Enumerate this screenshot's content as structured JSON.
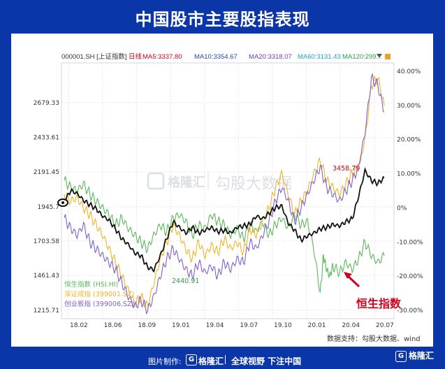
{
  "title": "中国股市主要股指表现",
  "watermark": {
    "brand": "格隆汇",
    "app": "勾股大数据"
  },
  "legend_header": {
    "symbol": "000001.SH [上证指数]",
    "period": "日线",
    "ma": [
      {
        "label": "MA5:3337.80",
        "color": "#d0021b"
      },
      {
        "label": "MA10:3354.67",
        "color": "#1f4ea8"
      },
      {
        "label": "MA20:3318.07",
        "color": "#6a3fb5"
      },
      {
        "label": "MA60:3131.43",
        "color": "#1aa3c8"
      },
      {
        "label": "MA120:299...",
        "color": "#2c9e3f"
      }
    ]
  },
  "footer": {
    "made_by": "图片制作:",
    "brand": "格隆汇",
    "slogan": "全球视野 下注中国"
  },
  "source_note": "数据支持：勾股大数据、wind",
  "annotation": {
    "text": "恒生指数",
    "color": "#d0021b"
  },
  "chart_data": {
    "type": "line",
    "x_ticks": [
      "18.02",
      "18.06",
      "18.09",
      "19.01",
      "19.04",
      "19.07",
      "19.10",
      "20.01",
      "20.04",
      "20.07"
    ],
    "y_left": {
      "ticks": [
        "2679.33",
        "2433.61",
        "2191.45",
        "1945.7",
        "1703.58",
        "1461.43",
        "1215.71"
      ],
      "range": [
        1215.71,
        2900
      ]
    },
    "y_right": {
      "ticks": [
        "40.00%",
        "30.00%",
        "20.00%",
        "10.00%",
        "0%",
        "-10.00%",
        "-20.00%",
        "-30.00%"
      ],
      "range": [
        -30,
        40
      ]
    },
    "point_labels": [
      {
        "text": "2440.91",
        "color": "#2c9e3f"
      },
      {
        "text": "3458.79",
        "color": "#d0021b"
      }
    ],
    "series": [
      {
        "name": "恒生指数 (HSI.HI)",
        "axis": "right",
        "color": "#5cb85c",
        "t": [
          0,
          0.02,
          0.04,
          0.06,
          0.08,
          0.1,
          0.12,
          0.14,
          0.16,
          0.18,
          0.2,
          0.22,
          0.24,
          0.26,
          0.28,
          0.3,
          0.32,
          0.34,
          0.36,
          0.38,
          0.4,
          0.42,
          0.44,
          0.46,
          0.48,
          0.5,
          0.52,
          0.54,
          0.56,
          0.58,
          0.6,
          0.62,
          0.64,
          0.66,
          0.68,
          0.7,
          0.72,
          0.74,
          0.76,
          0.78,
          0.8,
          0.81,
          0.82,
          0.83,
          0.84,
          0.86,
          0.88,
          0.9,
          0.92,
          0.94,
          0.96,
          0.98,
          1.0
        ],
        "values": [
          8,
          6,
          5,
          7,
          4,
          2,
          0,
          -2,
          -5,
          -3,
          -6,
          -8,
          -10,
          -12,
          -8,
          -5,
          -7,
          -3,
          -2,
          -4,
          -8,
          -5,
          -6,
          -2,
          -4,
          -5,
          -8,
          -6,
          -9,
          -5,
          -7,
          -4,
          -8,
          -5,
          -3,
          -6,
          -2,
          -5,
          -4,
          -12,
          -25,
          -14,
          -18,
          -20,
          -17,
          -19,
          -16,
          -18,
          -15,
          -10,
          -14,
          -16,
          -14
        ]
      },
      {
        "name": "深证成指 (399001.SZ)",
        "axis": "right",
        "color": "#f0b429",
        "t": [
          0,
          0.02,
          0.04,
          0.06,
          0.08,
          0.1,
          0.12,
          0.14,
          0.16,
          0.18,
          0.2,
          0.22,
          0.24,
          0.26,
          0.28,
          0.3,
          0.32,
          0.34,
          0.36,
          0.38,
          0.4,
          0.42,
          0.44,
          0.46,
          0.48,
          0.5,
          0.52,
          0.54,
          0.56,
          0.58,
          0.6,
          0.62,
          0.64,
          0.66,
          0.68,
          0.7,
          0.72,
          0.74,
          0.76,
          0.78,
          0.8,
          0.82,
          0.84,
          0.86,
          0.88,
          0.9,
          0.92,
          0.94,
          0.96,
          0.98,
          1.0
        ],
        "values": [
          4,
          2,
          3,
          0,
          -2,
          -5,
          -8,
          -12,
          -16,
          -20,
          -24,
          -28,
          -26,
          -29,
          -22,
          -15,
          -10,
          -5,
          -8,
          -12,
          -15,
          -10,
          -14,
          -11,
          -13,
          -9,
          -12,
          -10,
          -13,
          -6,
          -8,
          -4,
          0,
          6,
          10,
          4,
          -2,
          2,
          5,
          10,
          14,
          8,
          6,
          4,
          7,
          10,
          12,
          20,
          36,
          38,
          30
        ]
      },
      {
        "name": "创业板指 (399006.SZ)",
        "axis": "right",
        "color": "#8060c8",
        "t": [
          0,
          0.02,
          0.04,
          0.06,
          0.08,
          0.1,
          0.12,
          0.14,
          0.16,
          0.18,
          0.2,
          0.22,
          0.24,
          0.26,
          0.28,
          0.3,
          0.32,
          0.34,
          0.36,
          0.38,
          0.4,
          0.42,
          0.44,
          0.46,
          0.48,
          0.5,
          0.52,
          0.54,
          0.56,
          0.58,
          0.6,
          0.62,
          0.64,
          0.66,
          0.68,
          0.7,
          0.72,
          0.74,
          0.76,
          0.78,
          0.8,
          0.82,
          0.84,
          0.86,
          0.88,
          0.9,
          0.92,
          0.94,
          0.96,
          0.98,
          1.0
        ],
        "values": [
          -3,
          -6,
          -8,
          -5,
          -10,
          -12,
          -14,
          -16,
          -18,
          -22,
          -26,
          -29,
          -27,
          -30,
          -26,
          -20,
          -15,
          -12,
          -15,
          -18,
          -20,
          -16,
          -19,
          -17,
          -20,
          -16,
          -18,
          -15,
          -16,
          -10,
          -12,
          -8,
          -4,
          2,
          6,
          2,
          -4,
          0,
          4,
          8,
          12,
          6,
          4,
          2,
          5,
          8,
          12,
          22,
          38,
          36,
          28
        ]
      },
      {
        "name": "000001.SH [上证指数]",
        "axis": "left",
        "color": "#111111",
        "t": [
          0,
          0.02,
          0.04,
          0.06,
          0.08,
          0.1,
          0.12,
          0.14,
          0.16,
          0.18,
          0.2,
          0.22,
          0.24,
          0.26,
          0.28,
          0.3,
          0.32,
          0.34,
          0.36,
          0.38,
          0.4,
          0.42,
          0.44,
          0.46,
          0.48,
          0.5,
          0.52,
          0.54,
          0.56,
          0.58,
          0.6,
          0.62,
          0.64,
          0.66,
          0.68,
          0.7,
          0.72,
          0.74,
          0.76,
          0.78,
          0.8,
          0.82,
          0.84,
          0.86,
          0.88,
          0.9,
          0.92,
          0.94,
          0.96,
          0.98,
          1.0
        ],
        "values": [
          1980,
          2060,
          2040,
          1990,
          1960,
          1930,
          1880,
          1850,
          1790,
          1720,
          1680,
          1620,
          1600,
          1520,
          1500,
          1600,
          1720,
          1840,
          1800,
          1760,
          1800,
          1760,
          1780,
          1800,
          1770,
          1780,
          1760,
          1800,
          1810,
          1820,
          1880,
          1860,
          1900,
          1940,
          1950,
          1830,
          1780,
          1710,
          1740,
          1760,
          1790,
          1800,
          1820,
          1810,
          1840,
          1860,
          2020,
          2200,
          2130,
          2110,
          2150
        ]
      }
    ]
  }
}
